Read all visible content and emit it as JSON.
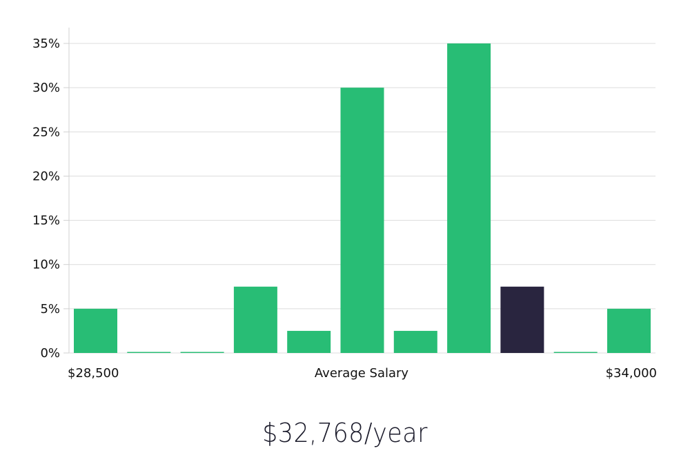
{
  "chart_data": {
    "type": "bar",
    "categories": [
      "",
      "",
      "",
      "",
      "",
      "",
      "",
      "",
      "",
      "",
      ""
    ],
    "values": [
      5,
      0,
      0,
      7.5,
      2.5,
      30,
      2.5,
      35,
      7.5,
      0,
      5
    ],
    "highlight_index": 8,
    "colors": {
      "bar": "#28bd75",
      "highlight": "#29253f",
      "grid": "#dcdcdc",
      "axis": "#d0d0d0"
    },
    "ylim": [
      0,
      35
    ],
    "yticks": [
      "0%",
      "5%",
      "10%",
      "15%",
      "20%",
      "25%",
      "30%",
      "35%"
    ],
    "ytick_values": [
      0,
      5,
      10,
      15,
      20,
      25,
      30,
      35
    ],
    "x_min_label": "$28,500",
    "x_max_label": "$34,000",
    "xlabel": "Average Salary",
    "grid": true
  },
  "headline": "$32,768/year"
}
